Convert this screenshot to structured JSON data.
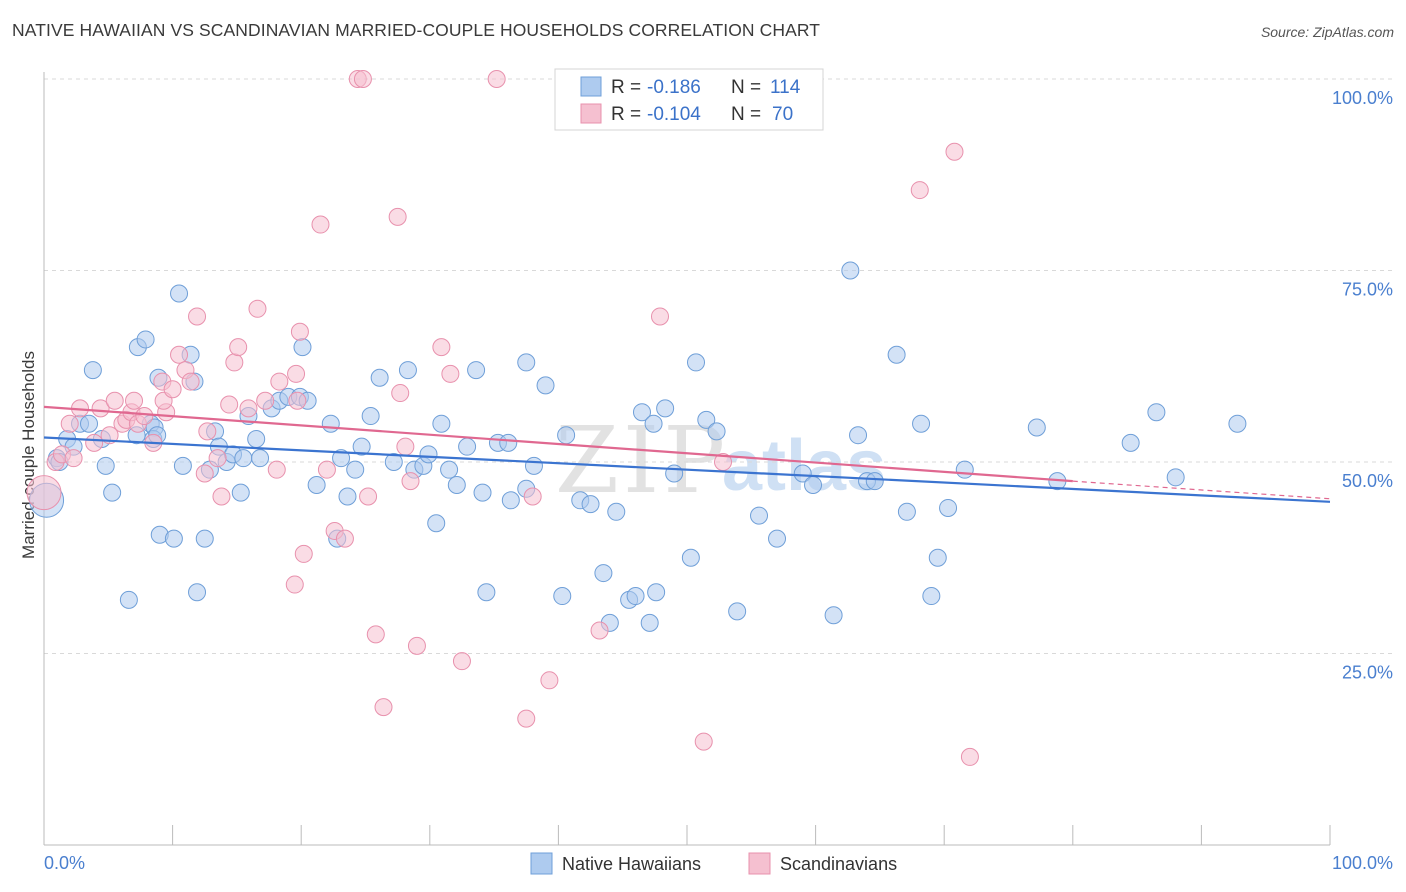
{
  "header": {
    "title": "NATIVE HAWAIIAN VS SCANDINAVIAN MARRIED-COUPLE HOUSEHOLDS CORRELATION CHART",
    "source": "Source: ZipAtlas.com"
  },
  "watermark": {
    "zip": "ZIP",
    "atlas": "atlas"
  },
  "colors": {
    "blue_fill": "#aecbef",
    "blue_stroke": "#6f9fd8",
    "blue_line": "#3b74d0",
    "pink_fill": "#f5c0d0",
    "pink_stroke": "#e891ad",
    "pink_line": "#e06890",
    "grid": "#d9d9d9",
    "tick_text": "#4a7fcf"
  },
  "legend": {
    "rows": [
      {
        "r_label": "R =",
        "r_value": "-0.186",
        "n_label": "N =",
        "n_value": "114"
      },
      {
        "r_label": "R =",
        "r_value": "-0.104",
        "n_label": "N =",
        "n_value": "70"
      }
    ]
  },
  "chart_data": {
    "type": "scatter",
    "title": "NATIVE HAWAIIAN VS SCANDINAVIAN MARRIED-COUPLE HOUSEHOLDS CORRELATION CHART",
    "xlabel": "",
    "ylabel": "Married-couple Households",
    "xlim": [
      0,
      100
    ],
    "ylim": [
      0,
      100
    ],
    "x_tick_labels": [
      "0.0%",
      "100.0%"
    ],
    "y_ticks": [
      25,
      50,
      75,
      100
    ],
    "y_tick_labels": [
      "25.0%",
      "50.0%",
      "75.0%",
      "100.0%"
    ],
    "grid": true,
    "legend_position": "bottom",
    "series": [
      {
        "name": "Native Hawaiians",
        "color": "#6f9fd8",
        "r": -0.186,
        "n": 114,
        "trend": {
          "x": [
            0,
            100
          ],
          "y": [
            53.2,
            44.8
          ],
          "dashed_from": null
        },
        "points": [
          [
            0.2,
            45.0
          ],
          [
            1.0,
            50.5
          ],
          [
            1.2,
            50.0
          ],
          [
            1.8,
            53.0
          ],
          [
            2.3,
            52.0
          ],
          [
            2.8,
            55.0
          ],
          [
            3.5,
            55.0
          ],
          [
            3.8,
            62.0
          ],
          [
            4.5,
            53.0
          ],
          [
            4.8,
            49.5
          ],
          [
            5.3,
            46.0
          ],
          [
            6.6,
            32.0
          ],
          [
            7.3,
            65.0
          ],
          [
            7.9,
            66.0
          ],
          [
            7.2,
            53.5
          ],
          [
            8.3,
            55.0
          ],
          [
            8.6,
            54.5
          ],
          [
            8.5,
            53.0
          ],
          [
            8.9,
            61.0
          ],
          [
            8.8,
            53.5
          ],
          [
            9.0,
            40.5
          ],
          [
            10.1,
            40.0
          ],
          [
            11.4,
            64.0
          ],
          [
            11.7,
            60.5
          ],
          [
            10.5,
            72.0
          ],
          [
            10.8,
            49.5
          ],
          [
            11.9,
            33.0
          ],
          [
            12.5,
            40.0
          ],
          [
            12.9,
            49.0
          ],
          [
            13.3,
            54.0
          ],
          [
            13.6,
            52.0
          ],
          [
            14.2,
            50.0
          ],
          [
            14.7,
            51.0
          ],
          [
            15.3,
            46.0
          ],
          [
            15.9,
            56.0
          ],
          [
            15.5,
            50.5
          ],
          [
            16.5,
            53.0
          ],
          [
            16.8,
            50.5
          ],
          [
            17.7,
            57.0
          ],
          [
            18.3,
            58.0
          ],
          [
            19.0,
            58.5
          ],
          [
            19.9,
            58.5
          ],
          [
            20.5,
            58.0
          ],
          [
            20.1,
            65.0
          ],
          [
            21.2,
            47.0
          ],
          [
            22.3,
            55.0
          ],
          [
            22.8,
            40.0
          ],
          [
            23.1,
            50.5
          ],
          [
            23.6,
            45.5
          ],
          [
            24.2,
            49.0
          ],
          [
            24.7,
            52.0
          ],
          [
            25.4,
            56.0
          ],
          [
            26.1,
            61.0
          ],
          [
            27.2,
            50.0
          ],
          [
            28.3,
            62.0
          ],
          [
            28.8,
            49.0
          ],
          [
            29.5,
            49.5
          ],
          [
            29.9,
            51.0
          ],
          [
            30.5,
            42.0
          ],
          [
            30.9,
            55.0
          ],
          [
            31.5,
            49.0
          ],
          [
            32.1,
            47.0
          ],
          [
            32.9,
            52.0
          ],
          [
            33.6,
            62.0
          ],
          [
            34.1,
            46.0
          ],
          [
            34.4,
            33.0
          ],
          [
            35.3,
            52.5
          ],
          [
            36.1,
            52.5
          ],
          [
            36.3,
            45.0
          ],
          [
            37.5,
            63.0
          ],
          [
            37.5,
            46.5
          ],
          [
            38.1,
            49.5
          ],
          [
            39.0,
            60.0
          ],
          [
            40.3,
            32.5
          ],
          [
            40.6,
            53.5
          ],
          [
            41.7,
            45.0
          ],
          [
            42.5,
            44.5
          ],
          [
            43.5,
            35.5
          ],
          [
            44.0,
            29.0
          ],
          [
            44.5,
            43.5
          ],
          [
            45.5,
            32.0
          ],
          [
            46.0,
            32.5
          ],
          [
            46.5,
            56.5
          ],
          [
            47.1,
            29.0
          ],
          [
            47.4,
            55.0
          ],
          [
            47.6,
            33.0
          ],
          [
            48.3,
            57.0
          ],
          [
            49.0,
            48.5
          ],
          [
            50.3,
            37.5
          ],
          [
            50.7,
            63.0
          ],
          [
            51.5,
            55.5
          ],
          [
            52.3,
            54.0
          ],
          [
            53.9,
            30.5
          ],
          [
            55.6,
            43.0
          ],
          [
            57.0,
            40.0
          ],
          [
            59.0,
            48.5
          ],
          [
            59.8,
            47.0
          ],
          [
            61.4,
            30.0
          ],
          [
            62.7,
            75.0
          ],
          [
            63.3,
            53.5
          ],
          [
            64.0,
            47.5
          ],
          [
            64.6,
            47.5
          ],
          [
            66.3,
            64.0
          ],
          [
            67.1,
            43.5
          ],
          [
            68.2,
            55.0
          ],
          [
            69.0,
            32.5
          ],
          [
            69.5,
            37.5
          ],
          [
            70.3,
            44.0
          ],
          [
            71.6,
            49.0
          ],
          [
            77.2,
            54.5
          ],
          [
            78.8,
            47.5
          ],
          [
            84.5,
            52.5
          ],
          [
            86.5,
            56.5
          ],
          [
            88.0,
            48.0
          ],
          [
            92.8,
            55.0
          ]
        ]
      },
      {
        "name": "Scandinavians",
        "color": "#e891ad",
        "r": -0.104,
        "n": 70,
        "trend": {
          "x": [
            0,
            80,
            100
          ],
          "y": [
            57.2,
            47.5,
            45.2
          ],
          "dashed_from": 80
        },
        "points": [
          [
            0.0,
            46.0
          ],
          [
            0.9,
            50.0
          ],
          [
            1.4,
            51.0
          ],
          [
            2.0,
            55.0
          ],
          [
            2.3,
            50.5
          ],
          [
            2.8,
            57.0
          ],
          [
            3.9,
            52.5
          ],
          [
            4.4,
            57.0
          ],
          [
            5.1,
            53.5
          ],
          [
            5.5,
            58.0
          ],
          [
            6.1,
            55.0
          ],
          [
            6.4,
            55.5
          ],
          [
            6.8,
            56.5
          ],
          [
            7.0,
            58.0
          ],
          [
            7.3,
            55.0
          ],
          [
            7.8,
            56.0
          ],
          [
            8.5,
            52.5
          ],
          [
            9.2,
            60.5
          ],
          [
            9.5,
            56.5
          ],
          [
            9.3,
            58.0
          ],
          [
            10.0,
            59.5
          ],
          [
            10.5,
            64.0
          ],
          [
            11.0,
            62.0
          ],
          [
            11.4,
            60.5
          ],
          [
            11.9,
            69.0
          ],
          [
            12.7,
            54.0
          ],
          [
            12.5,
            48.5
          ],
          [
            13.5,
            50.5
          ],
          [
            13.8,
            45.5
          ],
          [
            14.4,
            57.5
          ],
          [
            14.8,
            63.0
          ],
          [
            15.1,
            65.0
          ],
          [
            15.9,
            57.0
          ],
          [
            16.6,
            70.0
          ],
          [
            17.2,
            58.0
          ],
          [
            18.1,
            49.0
          ],
          [
            18.3,
            60.5
          ],
          [
            19.6,
            61.5
          ],
          [
            19.7,
            58.0
          ],
          [
            19.5,
            34.0
          ],
          [
            19.9,
            67.0
          ],
          [
            20.2,
            38.0
          ],
          [
            21.5,
            81.0
          ],
          [
            22.0,
            49.0
          ],
          [
            22.6,
            41.0
          ],
          [
            23.4,
            40.0
          ],
          [
            24.4,
            100.0
          ],
          [
            24.8,
            100.0
          ],
          [
            25.2,
            45.5
          ],
          [
            25.8,
            27.5
          ],
          [
            26.4,
            18.0
          ],
          [
            27.5,
            82.0
          ],
          [
            27.7,
            59.0
          ],
          [
            28.1,
            52.0
          ],
          [
            28.5,
            47.5
          ],
          [
            29.0,
            26.0
          ],
          [
            30.9,
            65.0
          ],
          [
            31.6,
            61.5
          ],
          [
            32.5,
            24.0
          ],
          [
            35.2,
            100.0
          ],
          [
            37.5,
            16.5
          ],
          [
            38.0,
            45.5
          ],
          [
            39.3,
            21.5
          ],
          [
            43.2,
            28.0
          ],
          [
            47.9,
            69.0
          ],
          [
            51.3,
            13.5
          ],
          [
            52.8,
            50.0
          ],
          [
            68.1,
            85.5
          ],
          [
            70.8,
            90.5
          ],
          [
            72.0,
            11.5
          ]
        ]
      }
    ]
  },
  "bottom_legend": {
    "items": [
      {
        "label": "Native Hawaiians"
      },
      {
        "label": "Scandinavians"
      }
    ]
  }
}
